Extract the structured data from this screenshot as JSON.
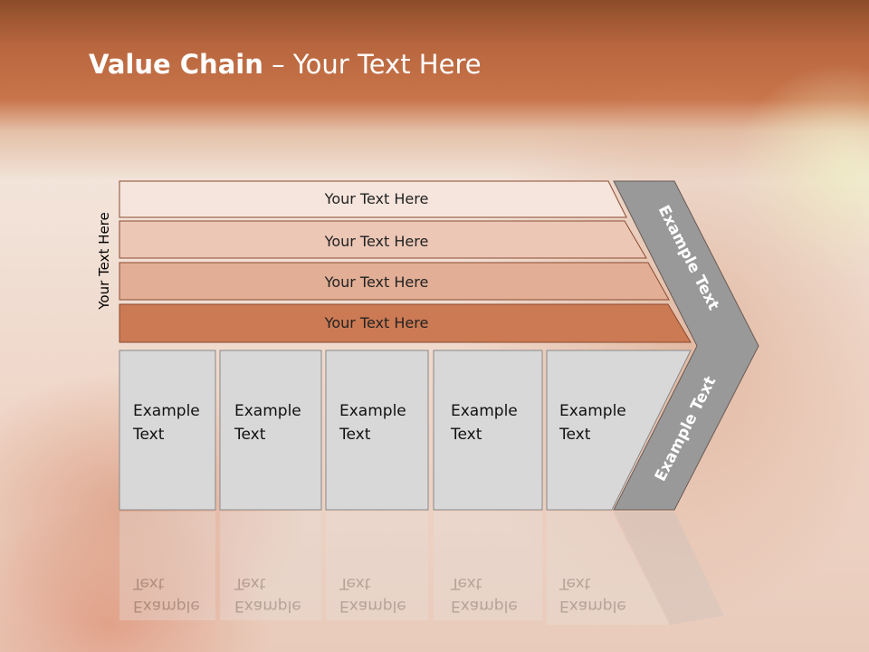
{
  "title": {
    "bold": "Value Chain",
    "rest": " – Your Text Here"
  },
  "side_label": "Your Text Here",
  "bars": [
    "Your Text Here",
    "Your Text Here",
    "Your Text Here",
    "Your Text Here"
  ],
  "boxes": [
    {
      "line1": "Example",
      "line2": "Text"
    },
    {
      "line1": "Example",
      "line2": "Text"
    },
    {
      "line1": "Example",
      "line2": "Text"
    },
    {
      "line1": "Example",
      "line2": "Text"
    },
    {
      "line1": "Example",
      "line2": "Text"
    }
  ],
  "chevron": {
    "top": "Example Text",
    "bottom": "Example Text"
  },
  "colors": {
    "bar1": "#f6e5dd",
    "bar2": "#ecc7b6",
    "bar3": "#e2af96",
    "bar4": "#cc7a54",
    "box": "#d8d8d8",
    "chevron": "#999999",
    "header": "#c06c42"
  }
}
